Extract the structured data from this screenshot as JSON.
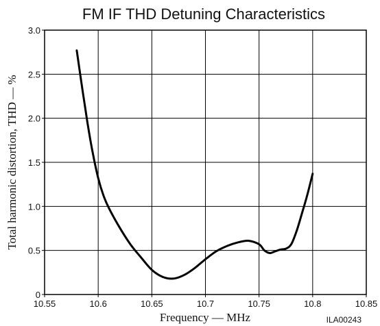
{
  "chart_data": {
    "type": "line",
    "title": "FM IF THD Detuning Characteristics",
    "xlabel": "Frequency — MHz",
    "ylabel": "Total harmonic distortion, THD — %",
    "figure_code": "ILA00243",
    "xlim": [
      10.55,
      10.85
    ],
    "ylim": [
      0,
      3.0
    ],
    "x_ticks": [
      10.55,
      10.6,
      10.65,
      10.7,
      10.75,
      10.8,
      10.85
    ],
    "x_tick_labels": [
      "10.55",
      "10.6",
      "10.65",
      "10.7",
      "10.75",
      "10.8",
      "10.85"
    ],
    "y_ticks": [
      0,
      0.5,
      1.0,
      1.5,
      2.0,
      2.5,
      3.0
    ],
    "y_tick_labels": [
      "0",
      "0.5",
      "1.0",
      "1.5",
      "2.0",
      "2.5",
      "3.0"
    ],
    "grid": true,
    "series": [
      {
        "x": [
          10.58,
          10.585,
          10.59,
          10.595,
          10.6,
          10.605,
          10.61,
          10.62,
          10.63,
          10.64,
          10.65,
          10.66,
          10.67,
          10.68,
          10.69,
          10.7,
          10.71,
          10.72,
          10.73,
          10.74,
          10.75,
          10.755,
          10.76,
          10.765,
          10.77,
          10.775,
          10.78,
          10.785,
          10.79,
          10.795,
          10.8
        ],
        "y": [
          2.77,
          2.35,
          1.95,
          1.6,
          1.32,
          1.12,
          0.98,
          0.76,
          0.57,
          0.42,
          0.28,
          0.2,
          0.18,
          0.22,
          0.3,
          0.4,
          0.49,
          0.55,
          0.59,
          0.61,
          0.57,
          0.5,
          0.47,
          0.49,
          0.51,
          0.52,
          0.57,
          0.72,
          0.92,
          1.13,
          1.37
        ],
        "color": "#000000"
      }
    ]
  }
}
